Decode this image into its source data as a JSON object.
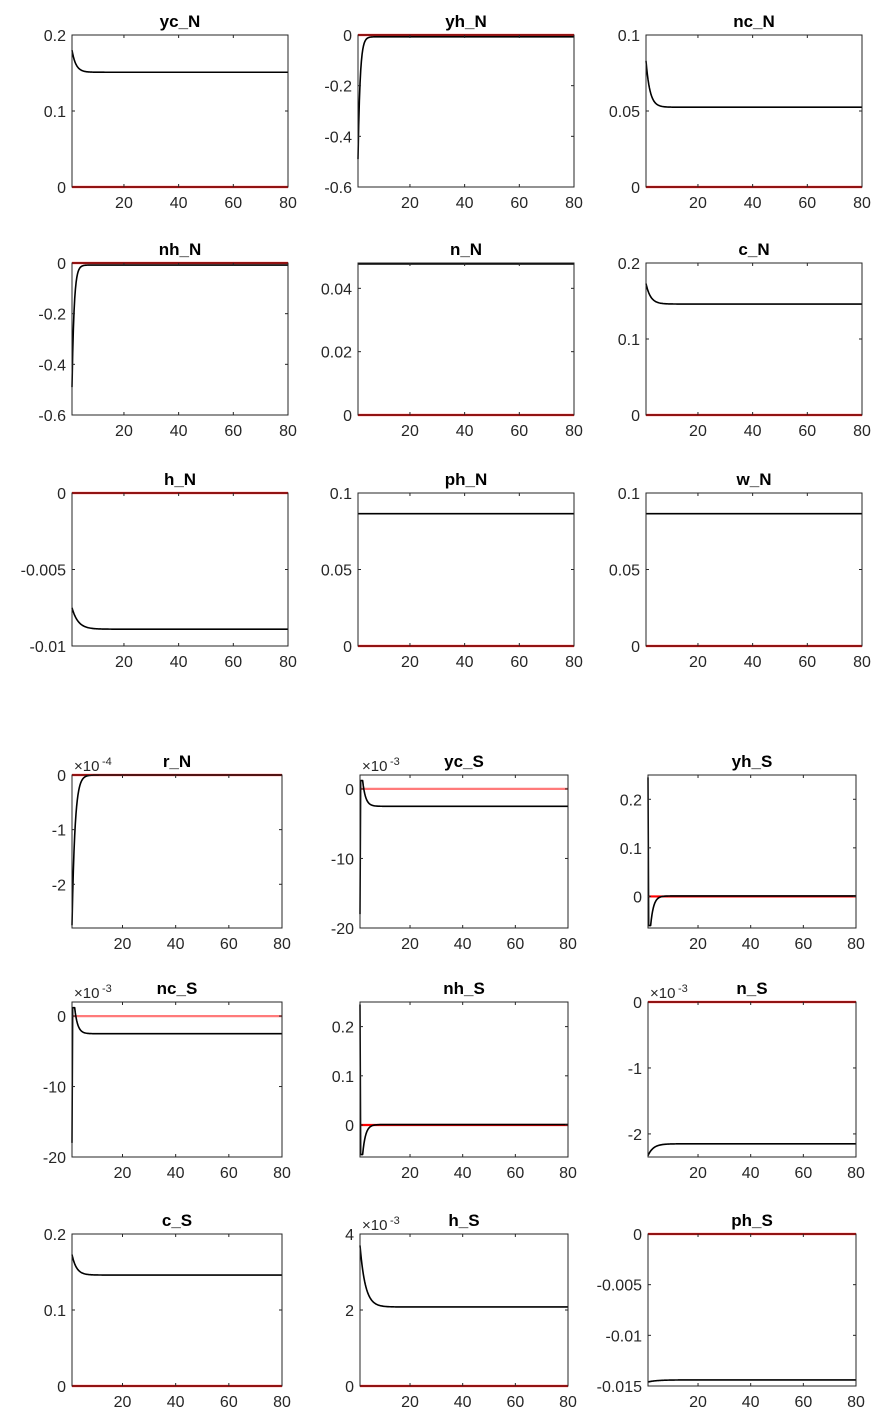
{
  "colors": {
    "response": "#000000",
    "steady_state": "#ff0000",
    "zero_line_faded": "#ff7a7a",
    "axis": "#262626",
    "background": "#ffffff"
  },
  "series_names": {
    "response": "",
    "steady_state": ""
  },
  "chart_data": [
    {
      "type": "line",
      "title": "yc_N",
      "xlim": [
        1,
        80
      ],
      "ylim": [
        0,
        0.2
      ],
      "yticks": [
        0,
        0.1,
        0.2
      ],
      "ytick_labels": [
        "0",
        "0.1",
        "0.2"
      ],
      "xticks": [
        20,
        40,
        60,
        80
      ],
      "xtick_labels": [
        "20",
        "40",
        "60",
        "80"
      ],
      "exponent": "",
      "response": {
        "start": 0.18,
        "end": 0.151,
        "decay": 0.7
      },
      "steady_state": 0,
      "steady_faded": false
    },
    {
      "type": "line",
      "title": "yh_N",
      "xlim": [
        1,
        80
      ],
      "ylim": [
        -0.6,
        0
      ],
      "yticks": [
        -0.6,
        -0.4,
        -0.2,
        0
      ],
      "ytick_labels": [
        "-0.6",
        "-0.4",
        "-0.2",
        "0"
      ],
      "xticks": [
        20,
        40,
        60,
        80
      ],
      "xtick_labels": [
        "20",
        "40",
        "60",
        "80"
      ],
      "exponent": "",
      "response": {
        "start": -0.49,
        "end": -0.007,
        "decay": 1.3
      },
      "steady_state": 0,
      "steady_faded": false
    },
    {
      "type": "line",
      "title": "nc_N",
      "xlim": [
        1,
        80
      ],
      "ylim": [
        0,
        0.1
      ],
      "yticks": [
        0,
        0.05,
        0.1
      ],
      "ytick_labels": [
        "0",
        "0.05",
        "0.1"
      ],
      "xticks": [
        20,
        40,
        60,
        80
      ],
      "xtick_labels": [
        "20",
        "40",
        "60",
        "80"
      ],
      "exponent": "",
      "response": {
        "start": 0.083,
        "end": 0.0525,
        "decay": 0.7
      },
      "steady_state": 0,
      "steady_faded": false
    },
    {
      "type": "line",
      "title": "nh_N",
      "xlim": [
        1,
        80
      ],
      "ylim": [
        -0.6,
        0
      ],
      "yticks": [
        -0.6,
        -0.4,
        -0.2,
        0
      ],
      "ytick_labels": [
        "-0.6",
        "-0.4",
        "-0.2",
        "0"
      ],
      "xticks": [
        20,
        40,
        60,
        80
      ],
      "xtick_labels": [
        "20",
        "40",
        "60",
        "80"
      ],
      "exponent": "",
      "response": {
        "start": -0.49,
        "end": -0.008,
        "decay": 1.3
      },
      "steady_state": 0,
      "steady_faded": false
    },
    {
      "type": "line",
      "title": "n_N",
      "xlim": [
        1,
        80
      ],
      "ylim": [
        0,
        0.048
      ],
      "yticks": [
        0,
        0.02,
        0.04
      ],
      "ytick_labels": [
        "0",
        "0.02",
        "0.04"
      ],
      "xticks": [
        20,
        40,
        60,
        80
      ],
      "xtick_labels": [
        "20",
        "40",
        "60",
        "80"
      ],
      "exponent": "",
      "response": {
        "start": 0.0477,
        "end": 0.0477,
        "decay": 1
      },
      "steady_state": 0,
      "steady_faded": false
    },
    {
      "type": "line",
      "title": "c_N",
      "xlim": [
        1,
        80
      ],
      "ylim": [
        0,
        0.2
      ],
      "yticks": [
        0,
        0.1,
        0.2
      ],
      "ytick_labels": [
        "0",
        "0.1",
        "0.2"
      ],
      "xticks": [
        20,
        40,
        60,
        80
      ],
      "xtick_labels": [
        "20",
        "40",
        "60",
        "80"
      ],
      "exponent": "",
      "response": {
        "start": 0.173,
        "end": 0.146,
        "decay": 0.6
      },
      "steady_state": 0,
      "steady_faded": false
    },
    {
      "type": "line",
      "title": "h_N",
      "xlim": [
        1,
        80
      ],
      "ylim": [
        -0.01,
        0
      ],
      "yticks": [
        -0.01,
        -0.005,
        0
      ],
      "ytick_labels": [
        "-0.01",
        "-0.005",
        "0"
      ],
      "xticks": [
        20,
        40,
        60,
        80
      ],
      "xtick_labels": [
        "20",
        "40",
        "60",
        "80"
      ],
      "exponent": "",
      "response": {
        "start": -0.0075,
        "end": -0.0089,
        "decay": 0.45
      },
      "steady_state": 0,
      "steady_faded": false
    },
    {
      "type": "line",
      "title": "ph_N",
      "xlim": [
        1,
        80
      ],
      "ylim": [
        0,
        0.1
      ],
      "yticks": [
        0,
        0.05,
        0.1
      ],
      "ytick_labels": [
        "0",
        "0.05",
        "0.1"
      ],
      "xticks": [
        20,
        40,
        60,
        80
      ],
      "xtick_labels": [
        "20",
        "40",
        "60",
        "80"
      ],
      "exponent": "",
      "response": {
        "start": 0.0865,
        "end": 0.0865,
        "decay": 1
      },
      "steady_state": 0,
      "steady_faded": false
    },
    {
      "type": "line",
      "title": "w_N",
      "xlim": [
        1,
        80
      ],
      "ylim": [
        0,
        0.1
      ],
      "yticks": [
        0,
        0.05,
        0.1
      ],
      "ytick_labels": [
        "0",
        "0.05",
        "0.1"
      ],
      "xticks": [
        20,
        40,
        60,
        80
      ],
      "xtick_labels": [
        "20",
        "40",
        "60",
        "80"
      ],
      "exponent": "",
      "response": {
        "start": 0.0865,
        "end": 0.0865,
        "decay": 1
      },
      "steady_state": 0,
      "steady_faded": false
    },
    {
      "type": "line",
      "title": "r_N",
      "xlim": [
        1,
        80
      ],
      "ylim": [
        -2.8,
        0
      ],
      "yticks": [
        -2,
        -1,
        0
      ],
      "ytick_labels": [
        "-2",
        "-1",
        "0"
      ],
      "xticks": [
        20,
        40,
        60,
        80
      ],
      "xtick_labels": [
        "20",
        "40",
        "60",
        "80"
      ],
      "exponent": "-4",
      "response": {
        "start": -2.75,
        "end": 0.0,
        "decay": 0.9
      },
      "steady_state": 0,
      "steady_faded": false
    },
    {
      "type": "line",
      "title": "yc_S",
      "xlim": [
        1,
        80
      ],
      "ylim": [
        -20,
        2
      ],
      "yticks": [
        -20,
        -10,
        0
      ],
      "ytick_labels": [
        "-20",
        "-10",
        "0"
      ],
      "xticks": [
        20,
        40,
        60,
        80
      ],
      "xtick_labels": [
        "20",
        "40",
        "60",
        "80"
      ],
      "exponent": "-3",
      "response": {
        "start": -18,
        "end": -2.5,
        "decay": 0.9,
        "peak": 1.2
      },
      "steady_state": 0,
      "steady_faded": true
    },
    {
      "type": "line",
      "title": "yh_S",
      "xlim": [
        1,
        80
      ],
      "ylim": [
        -0.065,
        0.25
      ],
      "yticks": [
        0,
        0.1,
        0.2
      ],
      "ytick_labels": [
        "0",
        "0.1",
        "0.2"
      ],
      "xticks": [
        20,
        40,
        60,
        80
      ],
      "xtick_labels": [
        "20",
        "40",
        "60",
        "80"
      ],
      "exponent": "",
      "response": {
        "start": 0.245,
        "end": 0.001,
        "decay": 0.9,
        "dip": -0.06
      },
      "steady_state": 0,
      "steady_faded": false
    },
    {
      "type": "line",
      "title": "nc_S",
      "xlim": [
        1,
        80
      ],
      "ylim": [
        -20,
        2
      ],
      "yticks": [
        -20,
        -10,
        0
      ],
      "ytick_labels": [
        "-20",
        "-10",
        "0"
      ],
      "xticks": [
        20,
        40,
        60,
        80
      ],
      "xtick_labels": [
        "20",
        "40",
        "60",
        "80"
      ],
      "exponent": "-3",
      "response": {
        "start": -18,
        "end": -2.5,
        "decay": 0.9,
        "peak": 1.2
      },
      "steady_state": 0,
      "steady_faded": true
    },
    {
      "type": "line",
      "title": "nh_S",
      "xlim": [
        1,
        80
      ],
      "ylim": [
        -0.065,
        0.25
      ],
      "yticks": [
        0,
        0.1,
        0.2
      ],
      "ytick_labels": [
        "0",
        "0.1",
        "0.2"
      ],
      "xticks": [
        20,
        40,
        60,
        80
      ],
      "xtick_labels": [
        "20",
        "40",
        "60",
        "80"
      ],
      "exponent": "",
      "response": {
        "start": 0.245,
        "end": 0.001,
        "decay": 0.9,
        "dip": -0.06
      },
      "steady_state": 0,
      "steady_faded": false
    },
    {
      "type": "line",
      "title": "n_S",
      "xlim": [
        1,
        80
      ],
      "ylim": [
        -2.35,
        0
      ],
      "yticks": [
        -2,
        -1,
        0
      ],
      "ytick_labels": [
        "-2",
        "-1",
        "0"
      ],
      "xticks": [
        20,
        40,
        60,
        80
      ],
      "xtick_labels": [
        "20",
        "40",
        "60",
        "80"
      ],
      "exponent": "-3",
      "response": {
        "start": -2.33,
        "end": -2.15,
        "decay": 0.5,
        "dip_at_2": true
      },
      "steady_state": 0,
      "steady_faded": false
    },
    {
      "type": "line",
      "title": "c_S",
      "xlim": [
        1,
        80
      ],
      "ylim": [
        0,
        0.2
      ],
      "yticks": [
        0,
        0.1,
        0.2
      ],
      "ytick_labels": [
        "0",
        "0.1",
        "0.2"
      ],
      "xticks": [
        20,
        40,
        60,
        80
      ],
      "xtick_labels": [
        "20",
        "40",
        "60",
        "80"
      ],
      "exponent": "",
      "response": {
        "start": 0.173,
        "end": 0.146,
        "decay": 0.6
      },
      "steady_state": 0,
      "steady_faded": false
    },
    {
      "type": "line",
      "title": "h_S",
      "xlim": [
        1,
        80
      ],
      "ylim": [
        0,
        4
      ],
      "yticks": [
        0,
        2,
        4
      ],
      "ytick_labels": [
        "0",
        "2",
        "4"
      ],
      "xticks": [
        20,
        40,
        60,
        80
      ],
      "xtick_labels": [
        "20",
        "40",
        "60",
        "80"
      ],
      "exponent": "-3",
      "response": {
        "start": 3.7,
        "end": 2.08,
        "decay": 0.5
      },
      "steady_state": 0,
      "steady_faded": false
    },
    {
      "type": "line",
      "title": "ph_S",
      "xlim": [
        1,
        80
      ],
      "ylim": [
        -0.015,
        0
      ],
      "yticks": [
        -0.015,
        -0.01,
        -0.005,
        0
      ],
      "ytick_labels": [
        "-0.015",
        "-0.01",
        "-0.005",
        "0"
      ],
      "xticks": [
        20,
        40,
        60,
        80
      ],
      "xtick_labels": [
        "20",
        "40",
        "60",
        "80"
      ],
      "exponent": "",
      "response": {
        "start": -0.0146,
        "end": -0.0144,
        "decay": 0.3
      },
      "steady_state": 0,
      "steady_faded": false
    }
  ]
}
